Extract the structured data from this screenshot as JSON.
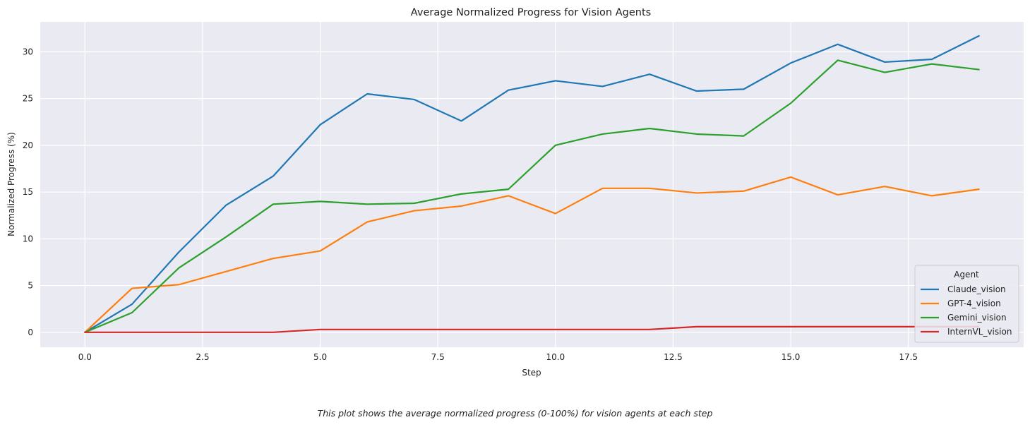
{
  "chart_data": {
    "type": "line",
    "title": "Average Normalized Progress for Vision Agents",
    "xlabel": "Step",
    "ylabel": "Normalized Progress (%)",
    "xlim": [
      -0.95,
      19.95
    ],
    "ylim": [
      -1.6,
      33.2
    ],
    "xticks": [
      0.0,
      2.5,
      5.0,
      7.5,
      10.0,
      12.5,
      15.0,
      17.5
    ],
    "xtick_labels": [
      "0.0",
      "2.5",
      "5.0",
      "7.5",
      "10.0",
      "12.5",
      "15.0",
      "17.5"
    ],
    "yticks": [
      0,
      5,
      10,
      15,
      20,
      25,
      30
    ],
    "ytick_labels": [
      "0",
      "5",
      "10",
      "15",
      "20",
      "25",
      "30"
    ],
    "grid": true,
    "legend": {
      "title": "Agent",
      "placement": "bottom-right"
    },
    "x": [
      0,
      1,
      2,
      3,
      4,
      5,
      6,
      7,
      8,
      9,
      10,
      11,
      12,
      13,
      14,
      15,
      16,
      17,
      18,
      19
    ],
    "series": [
      {
        "name": "Claude_vision",
        "color": "#1f77b4",
        "values": [
          0,
          3.0,
          8.6,
          13.6,
          16.7,
          22.2,
          25.5,
          24.9,
          22.6,
          25.9,
          26.9,
          26.3,
          27.6,
          25.8,
          26.0,
          28.8,
          30.8,
          28.9,
          29.2,
          31.7
        ]
      },
      {
        "name": "GPT-4_vision",
        "color": "#ff7f0e",
        "values": [
          0,
          4.7,
          5.1,
          6.5,
          7.9,
          8.7,
          11.8,
          13.0,
          13.5,
          14.6,
          12.7,
          15.4,
          15.4,
          14.9,
          15.1,
          16.6,
          14.7,
          15.6,
          14.6,
          15.3
        ]
      },
      {
        "name": "Gemini_vision",
        "color": "#2ca02c",
        "values": [
          0,
          2.1,
          6.9,
          10.2,
          13.7,
          14.0,
          13.7,
          13.8,
          14.8,
          15.3,
          20.0,
          21.2,
          21.8,
          21.2,
          21.0,
          24.5,
          29.1,
          27.8,
          28.7,
          28.1
        ]
      },
      {
        "name": "InternVL_vision",
        "color": "#d62728",
        "values": [
          0,
          0,
          0,
          0,
          0,
          0.3,
          0.3,
          0.3,
          0.3,
          0.3,
          0.3,
          0.3,
          0.3,
          0.6,
          0.6,
          0.6,
          0.6,
          0.6,
          0.6,
          0.6
        ]
      }
    ]
  },
  "caption": "This plot shows the average normalized progress (0-100%) for vision agents at each step"
}
